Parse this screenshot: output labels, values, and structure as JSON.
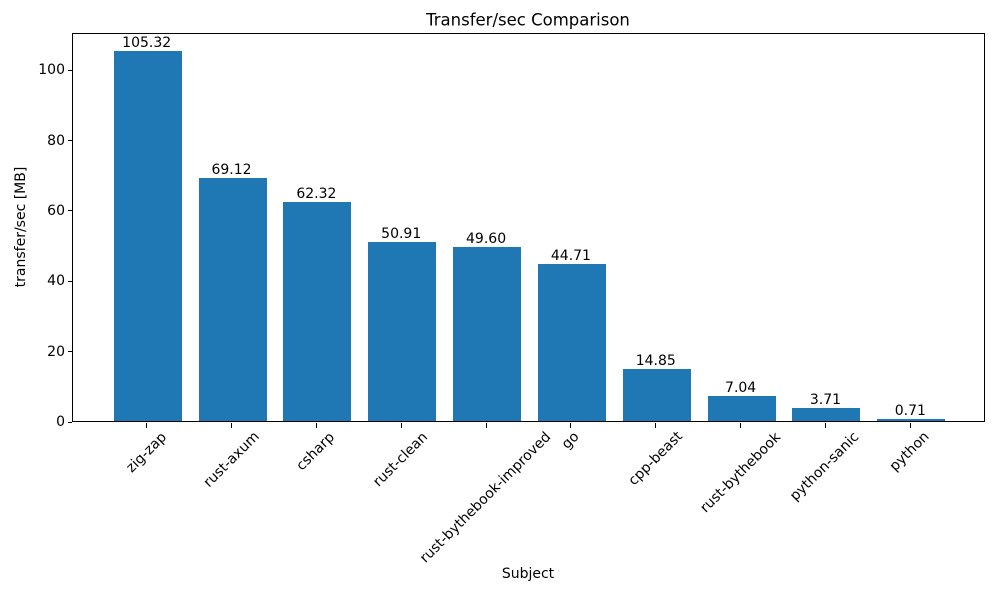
{
  "chart_data": {
    "type": "bar",
    "title": "Transfer/sec Comparison",
    "xlabel": "Subject",
    "ylabel": "transfer/sec [MB]",
    "categories": [
      "zig-zap",
      "rust-axum",
      "csharp",
      "rust-clean",
      "rust-bythebook-improved",
      "go",
      "cpp-beast",
      "rust-bythebook",
      "python-sanic",
      "python"
    ],
    "values": [
      105.32,
      69.12,
      62.32,
      50.91,
      49.6,
      44.71,
      14.85,
      7.04,
      3.71,
      0.71
    ],
    "value_labels": [
      "105.32",
      "69.12",
      "62.32",
      "50.91",
      "49.60",
      "44.71",
      "14.85",
      "7.04",
      "3.71",
      "0.71"
    ],
    "y_ticks": [
      0,
      20,
      40,
      60,
      80,
      100
    ],
    "ylim": [
      0,
      110.6
    ],
    "bar_color": "#1f77b4",
    "spine_color": "#000000",
    "text_color": "#000000",
    "grid": false,
    "legend": null,
    "x_tick_rotation": 45
  }
}
